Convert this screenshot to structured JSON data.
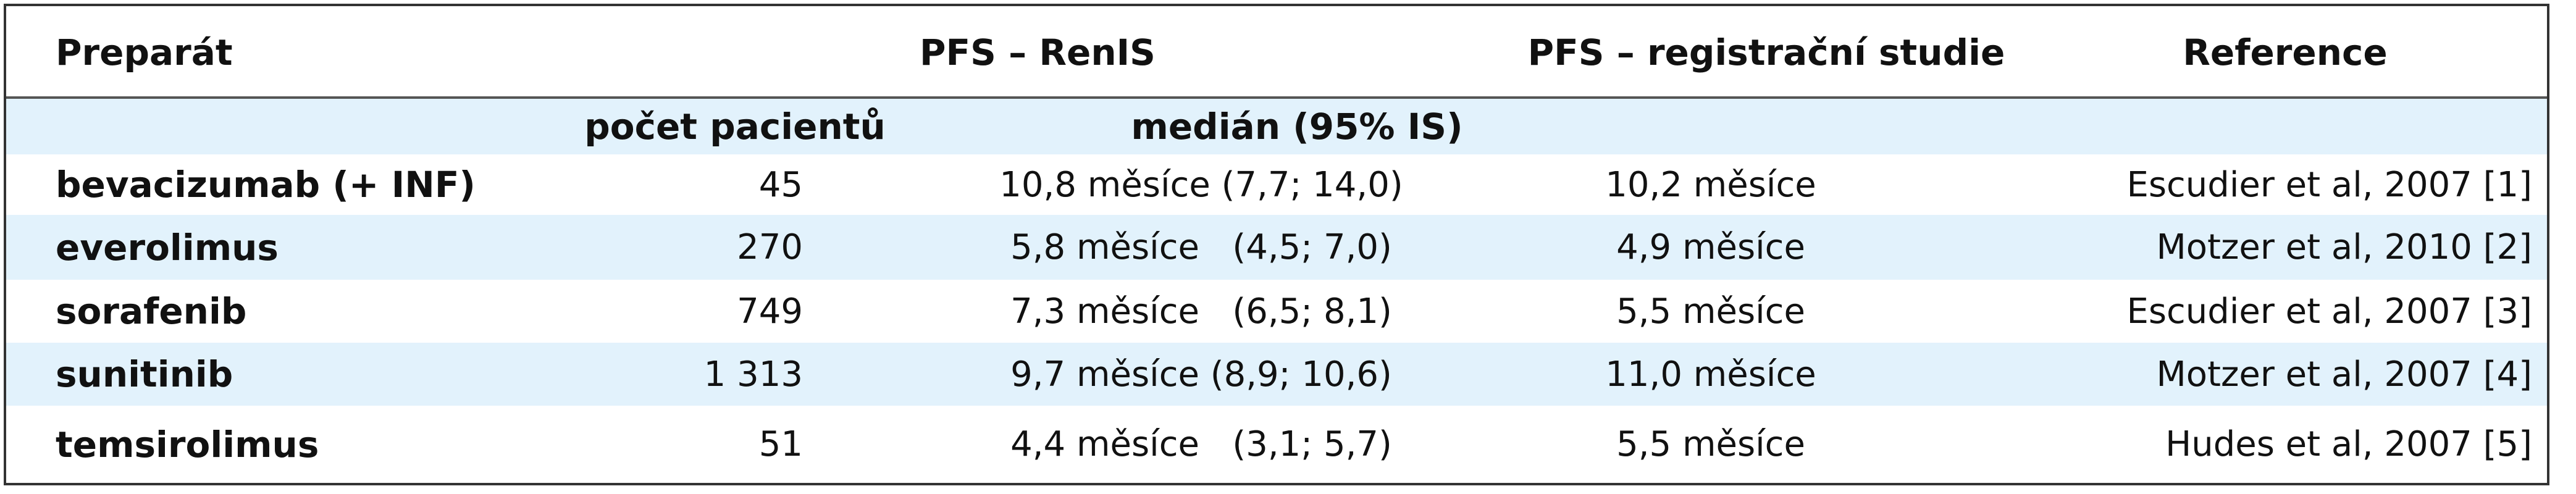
{
  "header": {
    "col_drug": "Preparát",
    "col_renis": "PFS – RenIS",
    "col_registration": "PFS – registrační studie",
    "col_reference": "Reference",
    "sub_count": "počet pacientů",
    "sub_median": "medián (95% IS)"
  },
  "rows": [
    {
      "drug": "bevacizumab (+ INF)",
      "count": "45",
      "median": "10,8 měsíce (7,7; 14,0)",
      "registration": "10,2 měsíce",
      "reference": "Escudier et al, 2007 [1]"
    },
    {
      "drug": "everolimus",
      "count": "270",
      "median": "5,8 měsíce   (4,5; 7,0)",
      "registration": "4,9 měsíce",
      "reference": "Motzer et al, 2010 [2]"
    },
    {
      "drug": "sorafenib",
      "count": "749",
      "median": "7,3 měsíce   (6,5; 8,1)",
      "registration": "5,5 měsíce",
      "reference": "Escudier et al, 2007 [3]"
    },
    {
      "drug": "sunitinib",
      "count": "1 313",
      "median": "9,7 měsíce (8,9; 10,6)",
      "registration": "11,0 měsíce",
      "reference": "Motzer et al, 2007 [4]"
    },
    {
      "drug": "temsirolimus",
      "count": "51",
      "median": "4,4 měsíce   (3,1; 5,7)",
      "registration": "5,5 měsíce",
      "reference": "Hudes et al, 2007 [5]"
    }
  ],
  "colors": {
    "shade": "#e2f2fc",
    "border": "#333333",
    "text": "#111111"
  }
}
